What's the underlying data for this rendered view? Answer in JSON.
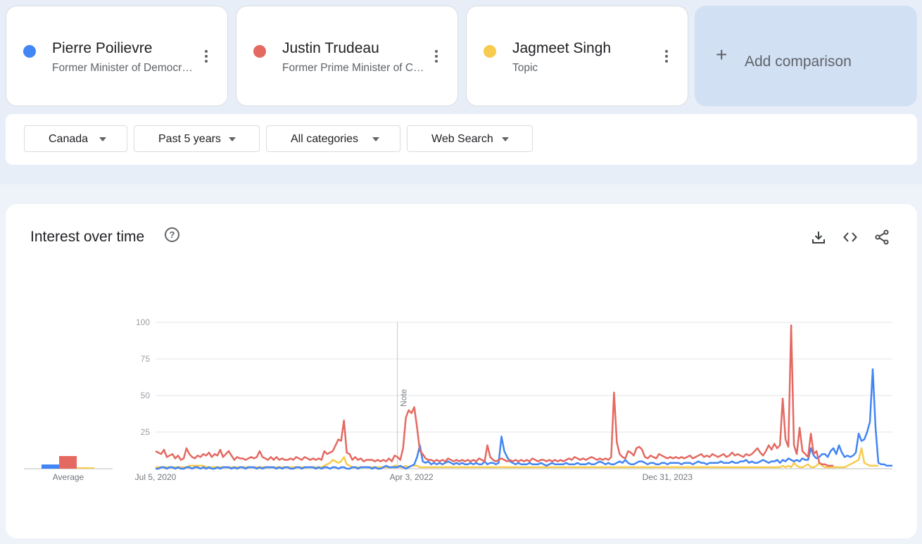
{
  "terms": [
    {
      "name": "Pierre Poilievre",
      "subtitle": "Former Minister of Democratic Institutions",
      "color": "#4285f4"
    },
    {
      "name": "Justin Trudeau",
      "subtitle": "Former Prime Minister of Canada",
      "color": "#e46961"
    },
    {
      "name": "Jagmeet Singh",
      "subtitle": "Topic",
      "color": "#f7cb4d"
    }
  ],
  "add_comparison": {
    "label": "Add comparison",
    "icon": "plus-icon"
  },
  "filters": {
    "region": "Canada",
    "time_range": "Past 5 years",
    "category": "All categories",
    "search_type": "Web Search"
  },
  "panel": {
    "title": "Interest over time",
    "help_icon": "help-circle-icon",
    "tools": [
      "download-icon",
      "embed-code-icon",
      "share-icon"
    ]
  },
  "chart_data": {
    "type": "line",
    "ylim": [
      0,
      100
    ],
    "y_ticks": [
      25,
      50,
      75,
      100
    ],
    "x_tick_labels": [
      "Jul 5, 2020",
      "Apr 3, 2022",
      "Dec 31, 2023"
    ],
    "x_tick_weeks": [
      0,
      91,
      182
    ],
    "note_label": "Note",
    "note_week": 86,
    "average_label": "Average",
    "averages": [
      3,
      9,
      1
    ],
    "series": [
      {
        "name": "Pierre Poilievre",
        "color": "#4285f4",
        "values": [
          0,
          0,
          1,
          1,
          0,
          1,
          1,
          0,
          1,
          0,
          0,
          1,
          1,
          0,
          1,
          1,
          0,
          1,
          0,
          1,
          0,
          0,
          1,
          0,
          1,
          1,
          1,
          0,
          1,
          0,
          1,
          1,
          0,
          1,
          1,
          1,
          0,
          1,
          0,
          1,
          1,
          1,
          1,
          0,
          1,
          0,
          1,
          1,
          0,
          0,
          1,
          1,
          0,
          1,
          1,
          1,
          1,
          0,
          1,
          0,
          1,
          1,
          0,
          1,
          1,
          0,
          1,
          1,
          0,
          0,
          1,
          1,
          0,
          1,
          1,
          1,
          1,
          0,
          1,
          0,
          0,
          1,
          2,
          1,
          1,
          1,
          1,
          2,
          1,
          0,
          1,
          2,
          3,
          8,
          16,
          5,
          4,
          5,
          3,
          4,
          3,
          4,
          3,
          4,
          5,
          4,
          3,
          4,
          3,
          4,
          3,
          3,
          4,
          3,
          4,
          3,
          3,
          5,
          3,
          4,
          4,
          3,
          4,
          22,
          12,
          8,
          5,
          4,
          3,
          4,
          3,
          3,
          3,
          4,
          3,
          3,
          3,
          4,
          3,
          2,
          3,
          4,
          3,
          3,
          3,
          3,
          4,
          3,
          3,
          3,
          4,
          3,
          3,
          3,
          4,
          3,
          3,
          4,
          5,
          4,
          3,
          4,
          3,
          3,
          4,
          5,
          4,
          6,
          4,
          3,
          3,
          4,
          5,
          5,
          4,
          3,
          4,
          4,
          3,
          3,
          4,
          4,
          3,
          4,
          4,
          4,
          4,
          3,
          4,
          4,
          4,
          3,
          4,
          5,
          4,
          4,
          3,
          4,
          4,
          4,
          4,
          5,
          4,
          4,
          4,
          5,
          4,
          4,
          5,
          5,
          6,
          4,
          5,
          4,
          4,
          5,
          6,
          5,
          4,
          5,
          5,
          6,
          4,
          6,
          5,
          7,
          6,
          5,
          6,
          5,
          7,
          6,
          6,
          14,
          9,
          7,
          8,
          10,
          10,
          8,
          12,
          14,
          10,
          16,
          11,
          8,
          9,
          8,
          9,
          11,
          24,
          19,
          20,
          25,
          32,
          68,
          28,
          4,
          3,
          3,
          2,
          2,
          2
        ]
      },
      {
        "name": "Justin Trudeau",
        "color": "#e46961",
        "values": [
          12,
          11,
          10,
          13,
          8,
          9,
          10,
          7,
          9,
          6,
          7,
          14,
          10,
          8,
          7,
          9,
          8,
          10,
          9,
          11,
          8,
          10,
          9,
          13,
          8,
          10,
          12,
          9,
          6,
          8,
          7,
          7,
          6,
          7,
          8,
          7,
          8,
          12,
          8,
          7,
          6,
          8,
          6,
          8,
          6,
          7,
          6,
          6,
          7,
          6,
          8,
          7,
          6,
          8,
          7,
          6,
          7,
          6,
          7,
          6,
          12,
          10,
          11,
          12,
          16,
          20,
          19,
          33,
          11,
          10,
          6,
          8,
          6,
          7,
          5,
          6,
          6,
          6,
          5,
          6,
          5,
          6,
          5,
          7,
          5,
          9,
          8,
          6,
          14,
          35,
          40,
          38,
          42,
          28,
          12,
          10,
          7,
          6,
          6,
          5,
          6,
          5,
          6,
          5,
          7,
          6,
          5,
          6,
          5,
          6,
          5,
          6,
          5,
          6,
          5,
          7,
          6,
          5,
          16,
          8,
          6,
          5,
          6,
          7,
          6,
          5,
          6,
          5,
          6,
          5,
          6,
          5,
          6,
          5,
          7,
          6,
          5,
          6,
          6,
          5,
          6,
          5,
          6,
          5,
          6,
          5,
          6,
          7,
          6,
          8,
          7,
          6,
          7,
          6,
          7,
          8,
          7,
          6,
          7,
          6,
          7,
          6,
          8,
          52,
          18,
          10,
          8,
          7,
          12,
          11,
          9,
          14,
          15,
          13,
          8,
          7,
          9,
          8,
          7,
          10,
          9,
          8,
          7,
          8,
          7,
          8,
          7,
          8,
          7,
          8,
          9,
          7,
          8,
          9,
          10,
          8,
          9,
          8,
          10,
          9,
          8,
          9,
          10,
          8,
          9,
          11,
          9,
          10,
          9,
          8,
          10,
          9,
          10,
          12,
          14,
          11,
          9,
          12,
          16,
          13,
          17,
          14,
          16,
          48,
          20,
          15,
          98,
          16,
          10,
          28,
          12,
          10,
          8,
          24,
          10,
          12,
          4,
          3,
          3,
          2,
          2,
          2
        ]
      },
      {
        "name": "Jagmeet Singh",
        "color": "#f7cb4d",
        "values": [
          1,
          1,
          1,
          1,
          1,
          1,
          1,
          1,
          1,
          1,
          1,
          1,
          2,
          2,
          2,
          2,
          2,
          2,
          1,
          1,
          1,
          1,
          1,
          1,
          1,
          1,
          1,
          1,
          1,
          1,
          1,
          1,
          1,
          1,
          1,
          1,
          1,
          1,
          1,
          1,
          1,
          1,
          1,
          1,
          1,
          1,
          1,
          1,
          1,
          1,
          1,
          1,
          1,
          1,
          1,
          1,
          1,
          1,
          1,
          1,
          2,
          3,
          4,
          6,
          5,
          4,
          5,
          8,
          3,
          2,
          1,
          1,
          1,
          1,
          1,
          1,
          1,
          1,
          1,
          1,
          1,
          1,
          1,
          1,
          1,
          2,
          2,
          1,
          1,
          2,
          1,
          2,
          2,
          2,
          1,
          1,
          1,
          1,
          1,
          1,
          1,
          1,
          1,
          1,
          1,
          1,
          1,
          1,
          1,
          1,
          1,
          1,
          1,
          1,
          1,
          1,
          1,
          1,
          1,
          1,
          1,
          1,
          1,
          1,
          1,
          1,
          1,
          1,
          1,
          1,
          1,
          1,
          1,
          1,
          1,
          1,
          1,
          1,
          1,
          1,
          1,
          1,
          1,
          1,
          1,
          1,
          1,
          1,
          1,
          1,
          1,
          1,
          1,
          1,
          1,
          1,
          1,
          1,
          1,
          1,
          1,
          1,
          1,
          1,
          1,
          1,
          1,
          1,
          1,
          1,
          1,
          1,
          1,
          1,
          1,
          1,
          1,
          1,
          1,
          1,
          1,
          1,
          1,
          1,
          1,
          1,
          1,
          1,
          1,
          1,
          1,
          1,
          1,
          1,
          1,
          1,
          1,
          1,
          1,
          1,
          1,
          1,
          1,
          1,
          1,
          1,
          1,
          1,
          1,
          1,
          1,
          1,
          1,
          1,
          1,
          1,
          1,
          1,
          1,
          1,
          1,
          1,
          1,
          2,
          1,
          2,
          1,
          4,
          2,
          1,
          1,
          2,
          3,
          1,
          1,
          2,
          4,
          2,
          1,
          1,
          1,
          1,
          1,
          1,
          1,
          1,
          2,
          3,
          4,
          5,
          6,
          14,
          4,
          3,
          2,
          2,
          2,
          2
        ]
      }
    ]
  }
}
